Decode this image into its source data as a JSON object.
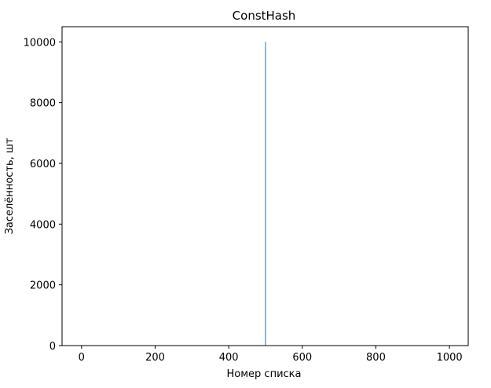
{
  "chart_data": {
    "type": "bar",
    "title": "ConstHash",
    "xlabel": "Номер списка",
    "ylabel": "Заселённость, шт",
    "xlim": [
      -53,
      1051
    ],
    "ylim": [
      0,
      10500
    ],
    "x_ticks": [
      0,
      200,
      400,
      600,
      800,
      1000
    ],
    "y_ticks": [
      0,
      2000,
      4000,
      6000,
      8000,
      10000
    ],
    "grid": false,
    "legend": "none",
    "series": [
      {
        "color": "#1f77b4",
        "points": [
          {
            "x": 500,
            "y": 10000
          }
        ],
        "other_values": 0
      }
    ]
  }
}
